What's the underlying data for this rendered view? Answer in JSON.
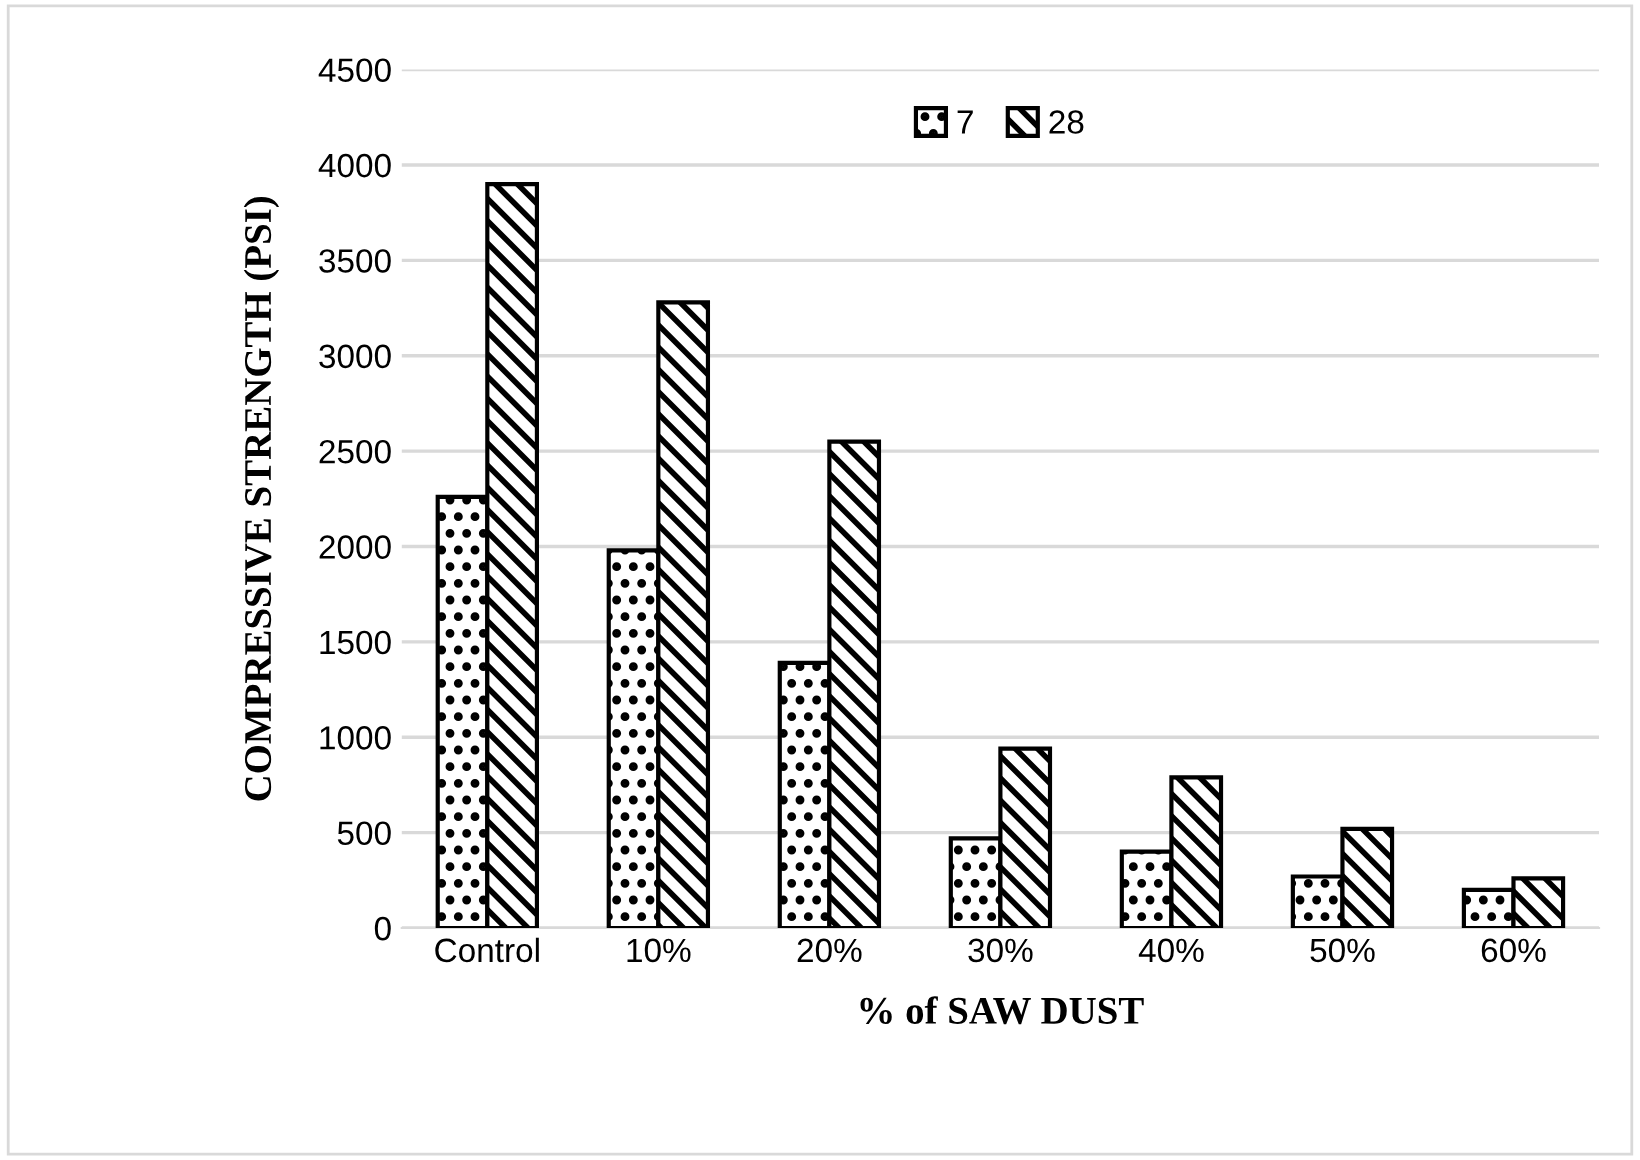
{
  "chart_data": {
    "type": "bar",
    "xlabel": "% of SAW DUST",
    "ylabel": "COMPRESSIVE STRENGTH (PSI)",
    "categories": [
      "Control",
      "10%",
      "20%",
      "30%",
      "40%",
      "50%",
      "60%"
    ],
    "series": [
      {
        "name": "7",
        "color": "#000000",
        "values": [
          2260,
          1980,
          1390,
          470,
          400,
          270,
          200
        ]
      },
      {
        "name": "28",
        "color": "#000000",
        "values": [
          3900,
          3280,
          2550,
          940,
          790,
          520,
          260
        ]
      }
    ],
    "ylim": [
      0,
      4500
    ],
    "yticks": [
      0,
      500,
      1000,
      1500,
      2000,
      2500,
      3000,
      3500,
      4000,
      4500
    ],
    "grid": "y",
    "legend": "top"
  }
}
